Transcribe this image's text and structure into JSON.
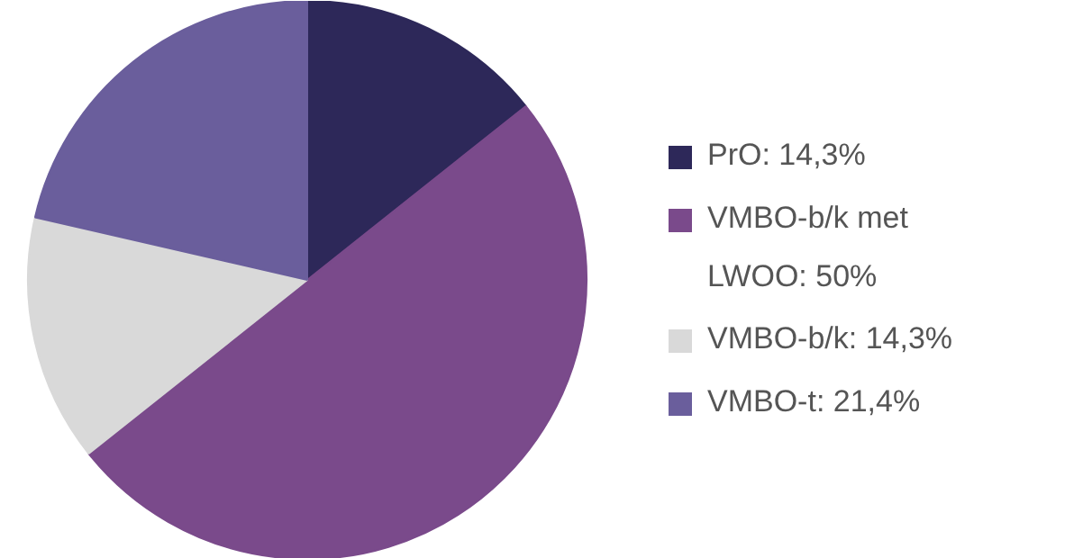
{
  "chart_data": {
    "type": "pie",
    "categories": [
      "PrO",
      "VMBO-b/k met LWOO",
      "VMBO-b/k",
      "VMBO-t"
    ],
    "values": [
      14.3,
      50,
      14.3,
      21.4
    ],
    "value_labels": [
      "14,3%",
      "50%",
      "14,3%",
      "21,4%"
    ],
    "colors": [
      "#2d2859",
      "#7a4a8b",
      "#d9d9d9",
      "#6a5e9c"
    ],
    "legend": "right"
  }
}
